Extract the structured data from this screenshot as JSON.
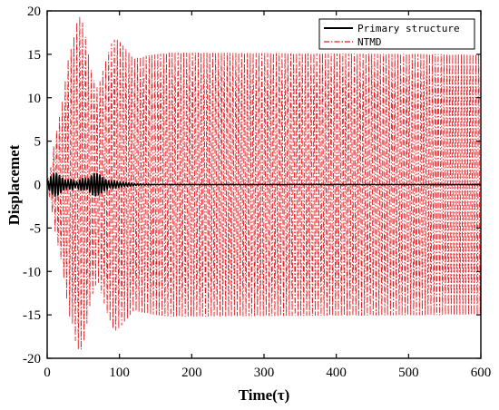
{
  "chart_data": {
    "type": "line",
    "xlabel": "Time(τ)",
    "ylabel": "Displacemet",
    "xlim": [
      0,
      600
    ],
    "ylim": [
      -20,
      20
    ],
    "xticks": [
      0,
      100,
      200,
      300,
      400,
      500,
      600
    ],
    "yticks": [
      -20,
      -15,
      -10,
      -5,
      0,
      5,
      10,
      15,
      20
    ],
    "grid": false,
    "legend_position": "top-right",
    "series": [
      {
        "name": "Primary structure",
        "color": "#000000",
        "style": "solid",
        "envelope": {
          "t": [
            0,
            3,
            8,
            12,
            16,
            22,
            28,
            34,
            40,
            48,
            54,
            60,
            66,
            72,
            78,
            86,
            92,
            100,
            110,
            120,
            130,
            150,
            600
          ],
          "amplitude": [
            0.3,
            0.7,
            1.3,
            1.4,
            1.2,
            0.7,
            0.4,
            0.7,
            0.2,
            0.8,
            0.5,
            1.0,
            1.4,
            1.2,
            0.8,
            0.3,
            0.4,
            0.25,
            0.2,
            0.1,
            0.05,
            0.02,
            0.02
          ]
        },
        "period": 4.0
      },
      {
        "name": "NTMD",
        "color": "#e8191e",
        "style": "dashdot",
        "envelope": {
          "t": [
            0,
            5,
            10,
            15,
            20,
            25,
            30,
            35,
            40,
            45,
            50,
            55,
            60,
            65,
            70,
            80,
            90,
            95,
            100,
            110,
            120,
            135,
            150,
            170,
            600
          ],
          "amplitude": [
            0.5,
            2.0,
            5.0,
            7.0,
            9.0,
            12.0,
            15.0,
            16.0,
            18.5,
            19.3,
            18.5,
            16.0,
            13.5,
            12.0,
            11.0,
            14.0,
            16.5,
            16.8,
            16.5,
            15.5,
            14.5,
            14.8,
            15.0,
            15.2,
            15.0
          ]
        },
        "period": 4.0
      }
    ]
  }
}
